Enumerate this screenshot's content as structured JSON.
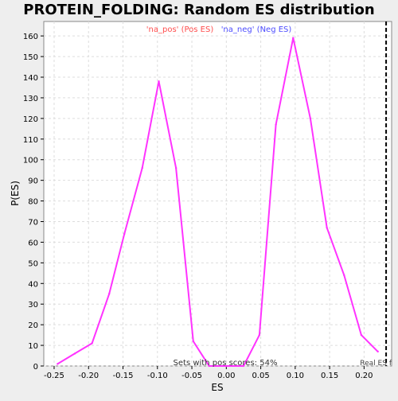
{
  "chart_data": {
    "type": "line",
    "title": "PROTEIN_FOLDING: Random ES distribution",
    "xlabel": "ES",
    "ylabel": "P(ES)",
    "xlim": [
      -0.265,
      0.24
    ],
    "ylim": [
      0,
      167
    ],
    "x_ticks": [
      -0.25,
      -0.2,
      -0.15,
      -0.1,
      -0.05,
      0.0,
      0.05,
      0.1,
      0.15,
      0.2
    ],
    "x_tick_labels": [
      "-0.25",
      "-0.20",
      "-0.15",
      "-0.10",
      "-0.05",
      "0.00",
      "0.05",
      "0.10",
      "0.15",
      "0.20"
    ],
    "y_ticks": [
      0,
      10,
      20,
      30,
      40,
      50,
      60,
      70,
      80,
      90,
      100,
      110,
      120,
      130,
      140,
      150,
      160
    ],
    "grid": true,
    "legend": [
      {
        "label": "'na_pos' (Pos ES)",
        "color": "#ff4d4d"
      },
      {
        "label": "'na_neg' (Neg ES)",
        "color": "#4d4dff"
      }
    ],
    "legend_placement": "top-center",
    "series": [
      {
        "color": "#ff33ff",
        "x": [
          -0.245,
          -0.22,
          -0.195,
          -0.17,
          -0.148,
          -0.122,
          -0.098,
          -0.073,
          -0.048,
          -0.025,
          0.0,
          0.025,
          0.048,
          0.072,
          0.097,
          0.122,
          0.146,
          0.171,
          0.196,
          0.22
        ],
        "y": [
          1,
          6,
          11,
          35,
          64,
          96,
          138,
          96,
          12,
          0,
          0,
          0,
          15,
          117,
          159,
          120,
          67,
          44,
          15,
          7
        ]
      }
    ],
    "real_es": {
      "x": 0.232,
      "label": "Real ES f"
    },
    "annotation": "Sets with pos scores: 54%"
  },
  "colors": {
    "background": "#eeeeee",
    "plot_background": "#ffffff",
    "grid": "#dddddd",
    "line": "#ff33ff"
  }
}
